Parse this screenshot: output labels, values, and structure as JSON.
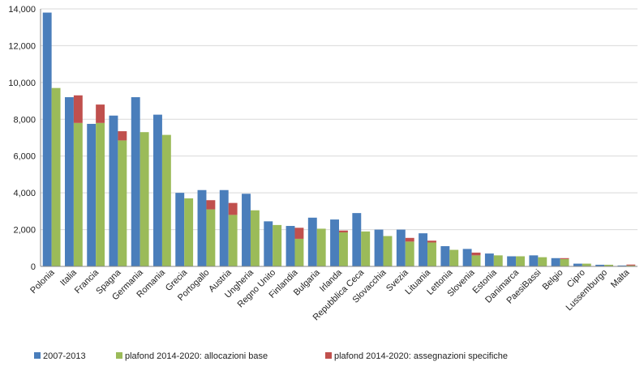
{
  "chart_data": {
    "type": "bar",
    "stacked_series_on_second_bar": true,
    "categories": [
      "Polonia",
      "Italia",
      "Francia",
      "Spagna",
      "Germania",
      "Romania",
      "Grecia",
      "Portogallo",
      "Austria",
      "Ungheria",
      "Regno Unito",
      "Finlandia",
      "Bulgaria",
      "Irlanda",
      "Repubblica Ceca",
      "Slovacchia",
      "Svezia",
      "Lituania",
      "Lettonia",
      "Slovenia",
      "Estonia",
      "Danimarca",
      "PaesiBassi",
      "Belgio",
      "Cipro",
      "Lussemburgo",
      "Malta"
    ],
    "series": [
      {
        "name": "2007-2013",
        "color": "#4a7ebb",
        "values": [
          13800,
          9200,
          7750,
          8200,
          9200,
          8250,
          4000,
          4150,
          4150,
          3950,
          2450,
          2200,
          2650,
          2550,
          2900,
          2000,
          2000,
          1800,
          1100,
          950,
          700,
          550,
          600,
          450,
          150,
          90,
          50
        ]
      },
      {
        "name": "plafond 2014-2020: allocazioni base",
        "color": "#9bbb59",
        "values": [
          9700,
          7800,
          7800,
          6850,
          7300,
          7150,
          3700,
          3100,
          2800,
          3050,
          2250,
          1500,
          2050,
          1850,
          1900,
          1650,
          1350,
          1300,
          900,
          600,
          600,
          550,
          500,
          400,
          150,
          90,
          50
        ]
      },
      {
        "name": "plafond 2014-2020: assegnazioni specifiche",
        "color": "#c0504d",
        "values": [
          0,
          1500,
          1000,
          500,
          0,
          0,
          0,
          500,
          650,
          0,
          0,
          600,
          0,
          100,
          0,
          0,
          200,
          100,
          0,
          150,
          0,
          0,
          0,
          50,
          0,
          0,
          50
        ]
      }
    ],
    "y_ticks": [
      "0",
      "2,000",
      "4,000",
      "6,000",
      "8,000",
      "10,000",
      "12,000",
      "14,000"
    ],
    "ylim": [
      0,
      14000
    ],
    "grid": true,
    "legend_position": "bottom"
  }
}
